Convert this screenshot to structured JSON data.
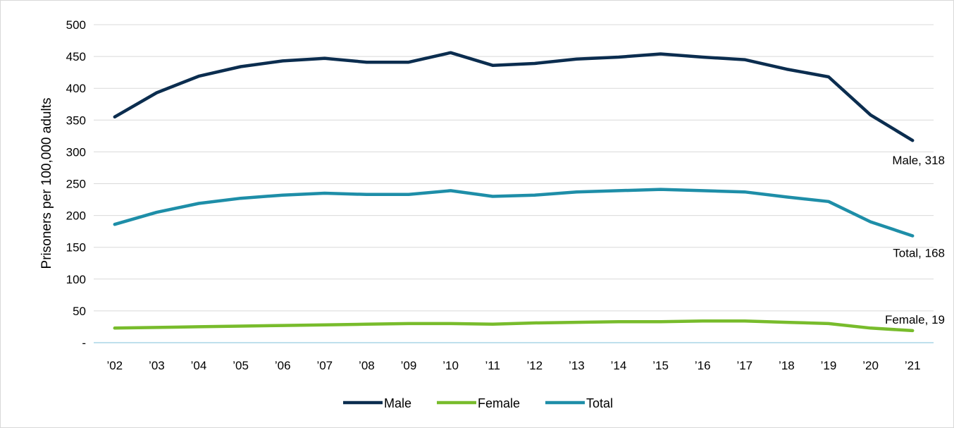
{
  "chart_data": {
    "type": "line",
    "ylabel": "Prisoners per 100,000 adults",
    "ylim": [
      0,
      500
    ],
    "yticks": [
      {
        "value": 0,
        "label": "-"
      },
      {
        "value": 50,
        "label": "50"
      },
      {
        "value": 100,
        "label": "100"
      },
      {
        "value": 150,
        "label": "150"
      },
      {
        "value": 200,
        "label": "200"
      },
      {
        "value": 250,
        "label": "250"
      },
      {
        "value": 300,
        "label": "300"
      },
      {
        "value": 350,
        "label": "350"
      },
      {
        "value": 400,
        "label": "400"
      },
      {
        "value": 450,
        "label": "450"
      },
      {
        "value": 500,
        "label": "500"
      }
    ],
    "categories": [
      "’02",
      "’03",
      "’04",
      "’05",
      "’06",
      "’07",
      "’08",
      "’09",
      "’10",
      "’11",
      "’12",
      "’13",
      "’14",
      "’15",
      "’16",
      "’17",
      "’18",
      "’19",
      "’20",
      "’21"
    ],
    "grid": true,
    "legend_position": "bottom",
    "series": [
      {
        "name": "Male",
        "color": "#0b2d4f",
        "values": [
          355,
          393,
          419,
          434,
          443,
          447,
          441,
          441,
          456,
          436,
          439,
          446,
          449,
          454,
          449,
          445,
          430,
          418,
          358,
          318
        ],
        "end_label": "Male,  318"
      },
      {
        "name": "Female",
        "color": "#78bc2c",
        "values": [
          23,
          24,
          25,
          26,
          27,
          28,
          29,
          30,
          30,
          29,
          31,
          32,
          33,
          33,
          34,
          34,
          32,
          30,
          23,
          19
        ],
        "end_label": "Female,  19"
      },
      {
        "name": "Total",
        "color": "#1e8ea8",
        "values": [
          186,
          205,
          219,
          227,
          232,
          235,
          233,
          233,
          239,
          230,
          232,
          237,
          239,
          241,
          239,
          237,
          229,
          222,
          190,
          168
        ],
        "end_label": "Total,  168"
      }
    ]
  }
}
